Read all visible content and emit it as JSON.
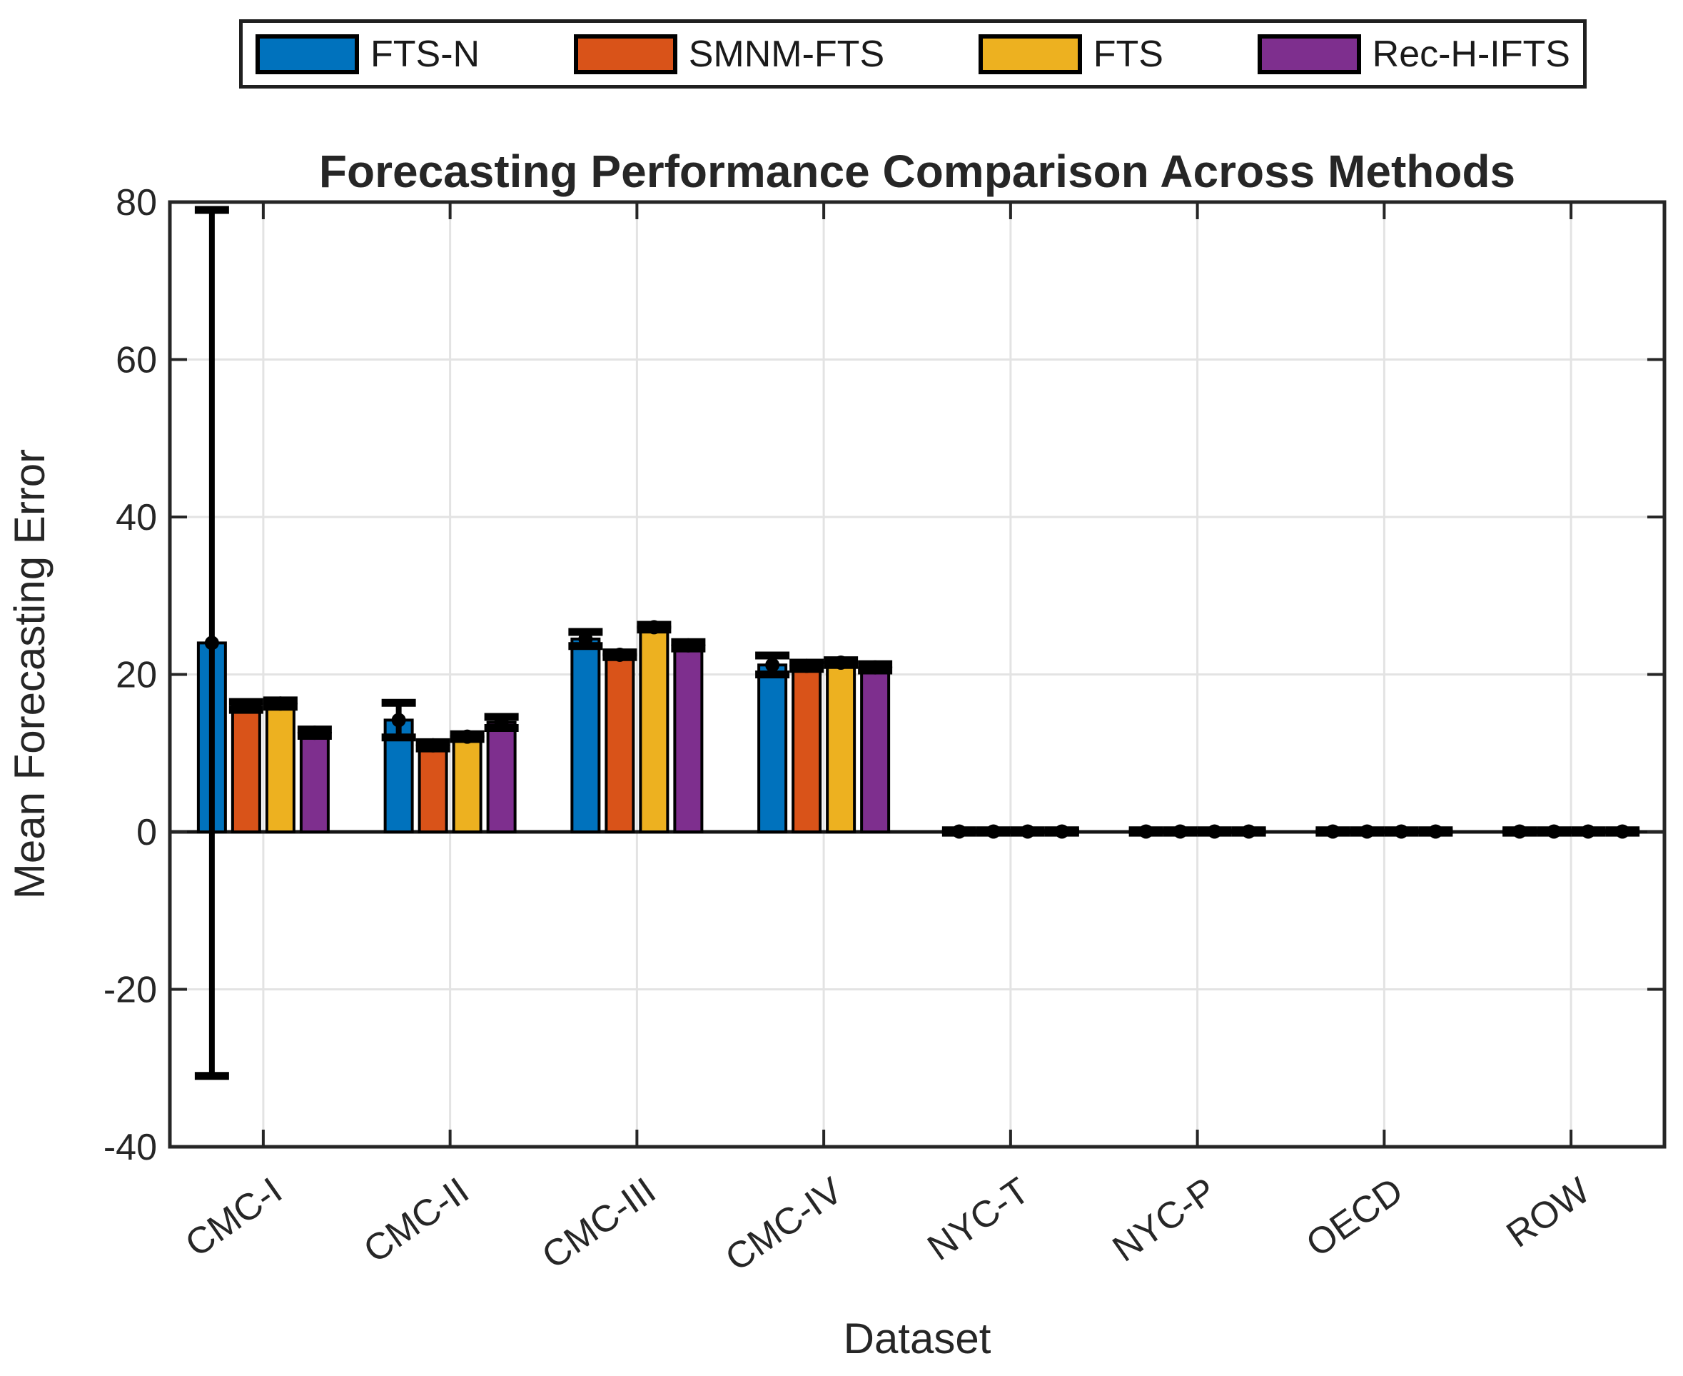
{
  "figure": {
    "background": "#ffffff",
    "axis_color": "#262626",
    "grid_color": "#e3e3e3",
    "zero_line_color": "#141414",
    "errorbar_color": "#000000",
    "text_color": "#1a1a1a"
  },
  "chart_data": {
    "type": "bar",
    "title": "Forecasting Performance Comparison Across Methods",
    "xlabel": "Dataset",
    "ylabel": "Mean Forecasting Error",
    "categories": [
      "CMC-I",
      "CMC-II",
      "CMC-III",
      "CMC-IV",
      "NYC-T",
      "NYC-P",
      "OECD",
      "ROW"
    ],
    "ylim": [
      -40,
      80
    ],
    "yticks": [
      -40,
      -20,
      0,
      20,
      40,
      60,
      80
    ],
    "ytick_labels": [
      "-40",
      "-20",
      "0",
      "20",
      "40",
      "60",
      "80"
    ],
    "grid": true,
    "legend": {
      "position": "top",
      "orientation": "horizontal",
      "entries": [
        "FTS-N",
        "SMNM-FTS",
        "FTS",
        "Rec-H-IFTS"
      ]
    },
    "series": [
      {
        "name": "FTS-N",
        "color": "#0072BD",
        "values": [
          24.0,
          14.2,
          24.5,
          21.2,
          0.05,
          0.05,
          0.05,
          0.05
        ],
        "errors": [
          55.0,
          2.2,
          0.9,
          1.2,
          0.15,
          0.15,
          0.15,
          0.15
        ]
      },
      {
        "name": "SMNM-FTS",
        "color": "#D95319",
        "values": [
          16.0,
          11.0,
          22.5,
          21.1,
          0.05,
          0.05,
          0.05,
          0.05
        ],
        "errors": [
          0.5,
          0.4,
          0.3,
          0.4,
          0.15,
          0.15,
          0.15,
          0.15
        ]
      },
      {
        "name": "FTS",
        "color": "#EDB120",
        "values": [
          16.3,
          12.1,
          26.0,
          21.5,
          0.05,
          0.05,
          0.05,
          0.05
        ],
        "errors": [
          0.4,
          0.3,
          0.3,
          0.3,
          0.15,
          0.15,
          0.15,
          0.15
        ]
      },
      {
        "name": "Rec-H-IFTS",
        "color": "#7E2F8E",
        "values": [
          12.6,
          13.9,
          23.7,
          20.9,
          0.05,
          0.05,
          0.05,
          0.05
        ],
        "errors": [
          0.4,
          0.7,
          0.4,
          0.4,
          0.15,
          0.15,
          0.15,
          0.15
        ]
      }
    ]
  }
}
